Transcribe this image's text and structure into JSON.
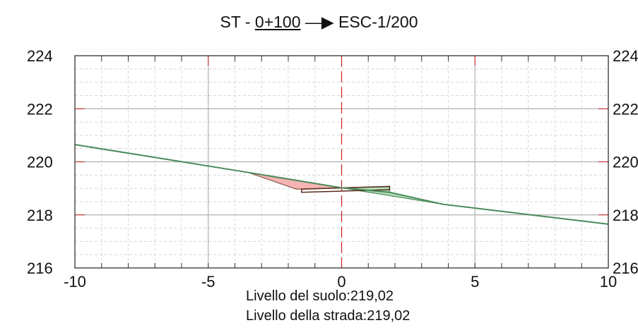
{
  "title": {
    "prefix": "ST - ",
    "station": "0+100",
    "arrow": " —▶ ",
    "scale": "ESC-1/200"
  },
  "info": {
    "ground_level": "Livello del suolo:219,02",
    "road_level": "Livello della strada:219,02"
  },
  "colors": {
    "terrain": "#4a8a5c",
    "fill_area": "#f4a7a7",
    "cut_area": "#a8d9a8",
    "centerline": "#cc2222",
    "major_grid": "#b0b0b0",
    "minor_grid": "#d8d8d8",
    "road": "#5a2a1a"
  },
  "chart_data": {
    "type": "area",
    "title": "ST - 0+100 —▶ ESC-1/200",
    "xlim": [
      -10,
      10
    ],
    "ylim": [
      216,
      224
    ],
    "x_ticks": [
      -10,
      -5,
      0,
      5,
      10
    ],
    "x_tick_labels": [
      "-10",
      "-5",
      "0",
      "5",
      "10"
    ],
    "y_ticks": [
      216,
      218,
      220,
      222,
      224
    ],
    "y_tick_labels": [
      "216",
      "218",
      "220",
      "222",
      "224"
    ],
    "right_y_tick_labels": [
      "216",
      "218",
      "220",
      "222",
      "224"
    ],
    "grid": true,
    "centerline_x": 0,
    "series": [
      {
        "role": "terrain",
        "x": [
          -10,
          -3.5,
          0,
          1.8,
          3.8,
          10
        ],
        "y": [
          220.65,
          219.6,
          219.02,
          218.85,
          218.4,
          217.65
        ]
      },
      {
        "role": "fill",
        "x": [
          -3.5,
          -1.7,
          0
        ],
        "y": [
          219.6,
          218.97,
          219.02
        ]
      },
      {
        "role": "cut",
        "x": [
          0,
          1.8,
          1.8,
          3.8
        ],
        "y": [
          219.02,
          219.08,
          218.85,
          218.4
        ]
      },
      {
        "role": "road",
        "x": [
          -1.5,
          1.8
        ],
        "y": [
          218.97,
          219.07
        ],
        "bottom": [
          218.85,
          218.95
        ]
      }
    ]
  }
}
